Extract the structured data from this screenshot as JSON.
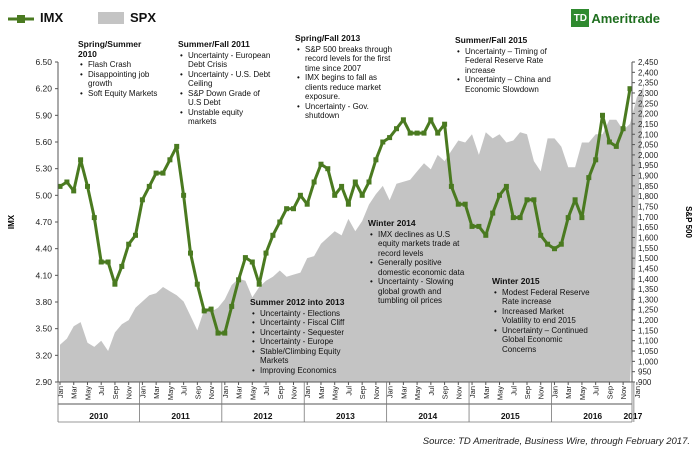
{
  "chart_data": {
    "type": "line",
    "title": "",
    "series": [
      {
        "name": "IMX",
        "axis": "left",
        "color": "#4a7a20",
        "values": [
          5.1,
          5.15,
          5.05,
          5.4,
          5.1,
          4.75,
          4.25,
          4.25,
          4.0,
          4.2,
          4.45,
          4.55,
          4.95,
          5.1,
          5.25,
          5.25,
          5.4,
          5.55,
          5.0,
          4.35,
          4.0,
          3.7,
          3.72,
          3.45,
          3.45,
          3.75,
          4.05,
          4.3,
          4.25,
          4.0,
          4.35,
          4.55,
          4.7,
          4.85,
          4.85,
          5.0,
          4.9,
          5.15,
          5.35,
          5.3,
          5.0,
          5.1,
          4.9,
          5.15,
          5.0,
          5.15,
          5.4,
          5.6,
          5.65,
          5.75,
          5.85,
          5.7,
          5.7,
          5.7,
          5.85,
          5.7,
          5.8,
          5.1,
          4.9,
          4.9,
          4.65,
          4.65,
          4.55,
          4.8,
          5.0,
          5.1,
          4.75,
          4.75,
          4.95,
          4.95,
          4.55,
          4.45,
          4.4,
          4.45,
          4.75,
          4.95,
          4.75,
          5.2,
          5.4,
          5.9,
          5.6,
          5.55,
          5.75,
          6.2
        ]
      },
      {
        "name": "SPX",
        "axis": "right",
        "color": "#c4c4c4",
        "values": [
          1080,
          1110,
          1170,
          1190,
          1090,
          1070,
          1100,
          1050,
          1140,
          1180,
          1200,
          1260,
          1290,
          1320,
          1330,
          1360,
          1340,
          1320,
          1290,
          1220,
          1150,
          1250,
          1240,
          1260,
          1300,
          1370,
          1400,
          1390,
          1310,
          1360,
          1390,
          1410,
          1440,
          1410,
          1420,
          1430,
          1500,
          1510,
          1570,
          1600,
          1630,
          1610,
          1690,
          1630,
          1680,
          1760,
          1810,
          1850,
          1780,
          1860,
          1870,
          1880,
          1920,
          1960,
          1930,
          2000,
          1970,
          2020,
          2070,
          2060,
          2100,
          2000,
          2110,
          2080,
          2100,
          2060,
          2070,
          2110,
          2100,
          1970,
          1920,
          2080,
          2080,
          2040,
          1940,
          1940,
          2060,
          2060,
          2100,
          2100,
          2170,
          2170,
          2120,
          2150,
          2280,
          2330
        ]
      }
    ],
    "x_tick_labels": [
      "Jan",
      "Mar",
      "May",
      "Jul",
      "Sep",
      "Nov",
      "Jan",
      "Mar",
      "May",
      "Jul",
      "Sep",
      "Nov",
      "Jan",
      "Mar",
      "May",
      "Jul",
      "Sep",
      "Nov",
      "Jan",
      "Mar",
      "May",
      "Jul",
      "Sep",
      "Nov",
      "Jan",
      "Mar",
      "May",
      "Jul",
      "Sep",
      "Nov",
      "Jan",
      "Mar",
      "May",
      "Jul",
      "Sep",
      "Nov",
      "Jan",
      "Mar",
      "May",
      "Jul",
      "Sep",
      "Nov",
      "Jan"
    ],
    "years": [
      "2010",
      "2011",
      "2012",
      "2013",
      "2014",
      "2015",
      "2016",
      "2017"
    ],
    "ylabel_left": "IMX",
    "ylabel_right": "S&P 500",
    "ylim_left": [
      2.9,
      6.5
    ],
    "ylim_right": [
      900,
      2450
    ],
    "yticks_left": [
      "2.90",
      "3.20",
      "3.50",
      "3.80",
      "4.10",
      "4.40",
      "4.70",
      "5.00",
      "5.30",
      "5.60",
      "5.90",
      "6.20",
      "6.50"
    ],
    "yticks_right": [
      "900",
      "950",
      "1,000",
      "1,050",
      "1,100",
      "1,150",
      "1,200",
      "1,250",
      "1,300",
      "1,350",
      "1,400",
      "1,450",
      "1,500",
      "1,550",
      "1,600",
      "1,650",
      "1,700",
      "1,750",
      "1,800",
      "1,850",
      "1,900",
      "1,950",
      "2,000",
      "2,050",
      "2,100",
      "2,150",
      "2,200",
      "2,250",
      "2,300",
      "2,350",
      "2,400",
      "2,450"
    ],
    "grid": false,
    "legend": "top-left"
  },
  "legend": {
    "imx": "IMX",
    "spx": "SPX"
  },
  "brand": {
    "mark": "TD",
    "name": "Ameritrade"
  },
  "annotations": [
    {
      "id": "a1",
      "title": "Spring/Summer 2010",
      "items": [
        "Flash Crash",
        "Disappointing job growth",
        "Soft Equity Markets"
      ]
    },
    {
      "id": "a2",
      "title": "Summer/Fall 2011",
      "items": [
        "Uncertainty - European Debt Crisis",
        "Uncertainty - U.S. Debt Ceiling",
        "S&P Down Grade of U.S Debt",
        "Unstable equity markets"
      ]
    },
    {
      "id": "a3",
      "title": "Spring/Fall 2013",
      "items": [
        "S&P 500 breaks through record levels for the first time since 2007",
        "IMX begins to fall as clients reduce market exposure.",
        "Uncertainty - Gov. shutdown"
      ]
    },
    {
      "id": "a4",
      "title": "Summer/Fall 2015",
      "items": [
        "Uncertainty – Timing of Federal Reserve Rate increase",
        "Uncertainty – China and Economic Slowdown"
      ]
    },
    {
      "id": "a5",
      "title": "Winter 2014",
      "items": [
        "IMX declines as U.S equity markets trade at record levels",
        "Generally positive domestic economic data",
        "Uncertainty - Slowing global growth and tumbling oil prices"
      ]
    },
    {
      "id": "a6",
      "title": "Summer 2012 into 2013",
      "items": [
        "Uncertainty - Elections",
        "Uncertainty - Fiscal Cliff",
        "Uncertainty - Sequester",
        "Uncertainty - Europe",
        "Stable/Climbing Equity Markets",
        "Improving Economics"
      ]
    },
    {
      "id": "a7",
      "title": "Winter 2015",
      "items": [
        "Modest Federal Reserve Rate increase",
        "Increased Market Volatility to end 2015",
        "Uncertainty – Continued Global Economic Concerns"
      ]
    }
  ],
  "source": "Source: TD Ameritrade, Business Wire, through February 2017."
}
